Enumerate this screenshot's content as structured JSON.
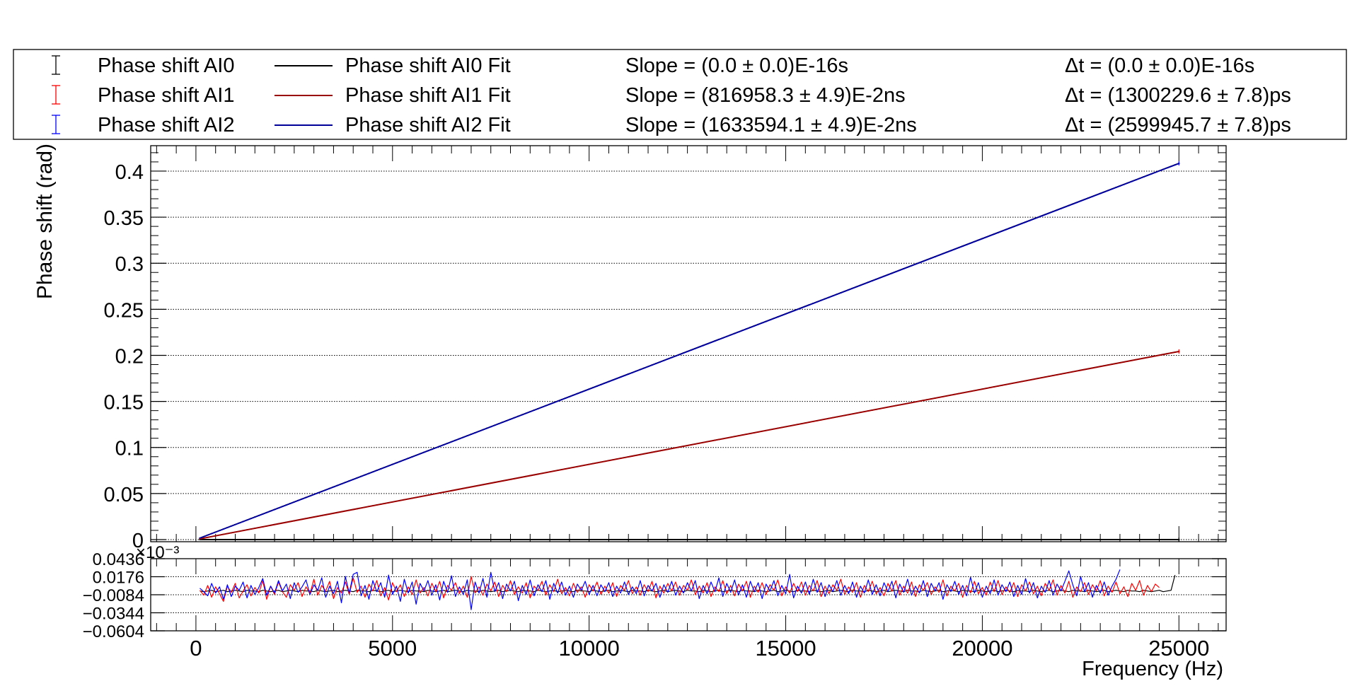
{
  "chart_data": [
    {
      "type": "scatter",
      "panel": "main",
      "xlabel": "",
      "ylabel": "Phase shift (rad)",
      "xlim": [
        -1150,
        26200
      ],
      "ylim": [
        -0.0023,
        0.4276
      ],
      "x_ticks": [
        0,
        5000,
        10000,
        15000,
        20000,
        25000
      ],
      "y_ticks": [
        0,
        0.05,
        0.1,
        0.15,
        0.2,
        0.25,
        0.3,
        0.35,
        0.4
      ],
      "y_tick_labels": [
        "0",
        "0.05",
        "0.1",
        "0.15",
        "0.2",
        "0.25",
        "0.3",
        "0.35",
        "0.4"
      ],
      "grid": true,
      "legend_position": "top",
      "series": [
        {
          "name": "Phase shift AI0",
          "color": "#000000",
          "x_range": [
            100,
            25000
          ],
          "slope_rad_per_hz": 0.0,
          "style": "points-with-error-bars"
        },
        {
          "name": "Phase shift AI1",
          "color": "#ff0000",
          "x_range": [
            100,
            25000
          ],
          "slope_rad_per_hz": 8.169583e-06,
          "style": "points-with-error-bars"
        },
        {
          "name": "Phase shift AI2",
          "color": "#0000ff",
          "x_range": [
            100,
            25000
          ],
          "slope_rad_per_hz": 1.6335941e-05,
          "style": "points-with-error-bars"
        },
        {
          "name": "Phase shift AI0 Fit",
          "color": "#000000",
          "x_range": [
            100,
            25000
          ],
          "slope_rad_per_hz": 0.0,
          "style": "line"
        },
        {
          "name": "Phase shift AI1 Fit",
          "color": "#990000",
          "x_range": [
            100,
            25000
          ],
          "slope_rad_per_hz": 8.169583e-06,
          "style": "line"
        },
        {
          "name": "Phase shift AI2 Fit",
          "color": "#000099",
          "x_range": [
            100,
            25000
          ],
          "slope_rad_per_hz": 1.6335941e-05,
          "style": "line"
        }
      ]
    },
    {
      "type": "line",
      "panel": "residuals",
      "xlabel": "Frequency (Hz)",
      "ylabel": "",
      "exponent_label": "×10⁻³",
      "xlim": [
        -1150,
        26200
      ],
      "ylim": [
        -0.0604,
        0.0436
      ],
      "y_ticks": [
        0.0436,
        0.0176,
        -0.0084,
        -0.0344,
        -0.0604
      ],
      "y_tick_labels": [
        "0.0436",
        "0.0176",
        "−0.0084",
        "−0.0344",
        "−0.0604"
      ],
      "x_ticks": [
        0,
        5000,
        10000,
        15000,
        20000,
        25000
      ],
      "x_tick_labels": [
        "0",
        "5000",
        "10000",
        "15000",
        "20000",
        "25000"
      ],
      "grid": true,
      "series": [
        {
          "name": "AI0 residual",
          "color": "#000000",
          "x_start": 100,
          "x_step": 100,
          "values": [
            -0.003,
            -0.004,
            -0.003,
            -0.002,
            -0.004,
            -0.003,
            -0.002,
            -0.004,
            -0.003,
            -0.002,
            -0.003,
            -0.004,
            -0.002,
            -0.003,
            -0.003,
            -0.004,
            -0.002,
            -0.003,
            -0.004,
            -0.003,
            -0.002,
            -0.004,
            -0.003,
            -0.002,
            -0.003,
            -0.004,
            -0.002,
            -0.003,
            -0.003,
            -0.004,
            -0.002,
            -0.003,
            -0.004,
            -0.003,
            -0.002,
            -0.004,
            -0.003,
            -0.002,
            -0.003,
            -0.004,
            -0.002,
            -0.003,
            -0.003,
            -0.004,
            -0.002,
            -0.003,
            -0.004,
            -0.003,
            -0.002,
            -0.004,
            -0.003,
            -0.002,
            -0.003,
            -0.004,
            -0.002,
            -0.003,
            -0.003,
            -0.004,
            -0.002,
            -0.003,
            -0.004,
            -0.003,
            -0.002,
            -0.004,
            -0.003,
            -0.002,
            -0.003,
            -0.004,
            -0.002,
            -0.003,
            -0.003,
            -0.004,
            -0.002,
            -0.003,
            -0.004,
            -0.003,
            -0.002,
            -0.004,
            -0.003,
            -0.002,
            -0.003,
            -0.004,
            -0.002,
            -0.003,
            -0.003,
            -0.004,
            -0.002,
            -0.003,
            -0.004,
            -0.003,
            -0.002,
            -0.004,
            -0.003,
            -0.002,
            -0.003,
            -0.004,
            -0.002,
            -0.003,
            -0.003,
            -0.004,
            -0.002,
            -0.003,
            -0.004,
            -0.003,
            -0.002,
            -0.004,
            -0.003,
            -0.002,
            -0.003,
            -0.004,
            -0.002,
            -0.003,
            -0.003,
            -0.004,
            -0.002,
            -0.003,
            -0.004,
            -0.003,
            -0.002,
            -0.004,
            -0.003,
            -0.002,
            -0.003,
            -0.004,
            -0.002,
            -0.003,
            -0.003,
            -0.004,
            -0.002,
            -0.003,
            -0.004,
            -0.003,
            -0.002,
            -0.004,
            -0.003,
            -0.002,
            -0.003,
            -0.004,
            -0.002,
            -0.003,
            -0.003,
            -0.004,
            -0.002,
            -0.003,
            -0.004,
            -0.003,
            -0.002,
            -0.004,
            -0.003,
            -0.002,
            -0.003,
            -0.004,
            -0.002,
            -0.003,
            -0.003,
            -0.004,
            -0.002,
            -0.003,
            -0.004,
            -0.003,
            -0.002,
            -0.004,
            -0.003,
            -0.002,
            -0.003,
            -0.004,
            -0.002,
            -0.003,
            -0.003,
            -0.004,
            -0.002,
            -0.003,
            -0.004,
            -0.003,
            -0.002,
            -0.004,
            -0.003,
            -0.002,
            -0.003,
            -0.004,
            -0.002,
            -0.003,
            -0.003,
            -0.004,
            -0.002,
            -0.003,
            -0.004,
            -0.003,
            -0.002,
            -0.004,
            -0.003,
            -0.002,
            -0.003,
            -0.004,
            -0.002,
            -0.003,
            -0.003,
            -0.004,
            -0.002,
            -0.003,
            -0.004,
            -0.003,
            -0.002,
            -0.004,
            -0.003,
            -0.002,
            -0.003,
            -0.004,
            -0.002,
            -0.003,
            -0.003,
            -0.004,
            -0.002,
            -0.003,
            -0.004,
            -0.003,
            -0.002,
            -0.004,
            -0.003,
            -0.002,
            -0.003,
            -0.004,
            -0.002,
            -0.003,
            -0.003,
            -0.004,
            -0.002,
            -0.003,
            -0.004,
            -0.003,
            -0.002,
            -0.004,
            -0.003,
            -0.002,
            -0.003,
            -0.004,
            -0.002,
            -0.003,
            -0.003,
            -0.004,
            -0.002,
            -0.003,
            -0.004,
            -0.003,
            -0.002,
            -0.004,
            -0.003,
            -0.002,
            0.02
          ]
        },
        {
          "name": "AI1 residual",
          "color": "#ff0000",
          "x_start": 100,
          "x_step": 100,
          "values": [
            -0.002,
            -0.009,
            0.005,
            -0.012,
            0.003,
            -0.007,
            -0.018,
            0.004,
            -0.005,
            0.008,
            -0.013,
            -0.003,
            0.006,
            -0.01,
            0.002,
            -0.006,
            0.012,
            -0.015,
            0.004,
            -0.008,
            0.01,
            -0.004,
            -0.012,
            0.006,
            -0.002,
            0.009,
            -0.011,
            0.003,
            -0.007,
            0.014,
            -0.009,
            0.005,
            -0.003,
            0.011,
            -0.014,
            0.002,
            -0.006,
            0.01,
            -0.008,
            0.016,
            -0.005,
            0.004,
            -0.012,
            0.007,
            -0.003,
            0.012,
            -0.01,
            0.002,
            -0.016,
            0.009,
            -0.004,
            0.006,
            -0.011,
            0.003,
            -0.008,
            0.013,
            -0.006,
            0.002,
            -0.01,
            0.008,
            -0.004,
            0.011,
            -0.013,
            0.005,
            -0.002,
            0.009,
            -0.007,
            0.004,
            -0.012,
            0.018,
            -0.006,
            0.003,
            -0.009,
            0.007,
            -0.003,
            0.01,
            -0.011,
            0.005,
            -0.004,
            0.012,
            -0.008,
            0.003,
            -0.006,
            0.009,
            -0.013,
            0.004,
            -0.002,
            0.011,
            -0.009,
            0.006,
            -0.004,
            0.014,
            -0.007,
            0.002,
            -0.01,
            0.008,
            -0.005,
            0.003,
            -0.012,
            0.006,
            -0.003,
            0.01,
            -0.008,
            0.004,
            -0.006,
            0.009,
            -0.011,
            0.005,
            -0.002,
            0.012,
            -0.007,
            0.003,
            -0.009,
            0.006,
            -0.004,
            0.011,
            -0.013,
            0.004,
            -0.006,
            0.008,
            -0.003,
            0.01,
            -0.009,
            0.005,
            -0.002,
            0.013,
            -0.008,
            0.004,
            -0.006,
            0.009,
            -0.011,
            0.003,
            -0.004,
            0.012,
            -0.007,
            0.005,
            -0.01,
            0.007,
            -0.003,
            0.011,
            -0.012,
            0.004,
            -0.005,
            0.009,
            -0.008,
            0.006,
            -0.002,
            0.013,
            -0.01,
            0.003,
            -0.006,
            0.008,
            -0.004,
            0.01,
            -0.009,
            0.005,
            -0.003,
            0.012,
            -0.011,
            0.004,
            -0.007,
            0.006,
            -0.002,
            0.014,
            -0.008,
            0.003,
            -0.005,
            0.009,
            -0.012,
            0.005,
            -0.004,
            0.011,
            -0.007,
            0.002,
            -0.01,
            0.008,
            -0.003,
            0.012,
            -0.009,
            0.004,
            -0.006,
            0.01,
            -0.011,
            0.006,
            -0.002,
            0.009,
            -0.008,
            0.003,
            -0.005,
            0.013,
            -0.01,
            0.004,
            -0.003,
            0.008,
            -0.012,
            0.005,
            -0.006,
            0.011,
            -0.007,
            0.002,
            -0.009,
            0.01,
            -0.004,
            0.012,
            -0.008,
            0.003,
            -0.005,
            0.009,
            -0.011,
            0.006,
            -0.003,
            0.01,
            -0.007,
            0.004,
            -0.01,
            0.008,
            -0.002,
            0.013,
            -0.009,
            0.005,
            -0.006,
            0.011,
            -0.012,
            0.003,
            -0.004,
            0.009,
            -0.008,
            0.006,
            -0.003,
            0.012,
            -0.01,
            0.004,
            -0.005,
            0.01,
            -0.007,
            0.003,
            -0.011,
            0.008,
            -0.002,
            0.012,
            -0.009,
            0.005,
            -0.004,
            0.007,
            0.002
          ]
        },
        {
          "name": "AI2 residual",
          "color": "#0000ff",
          "x_start": 100,
          "x_step": 100,
          "values": [
            0.001,
            -0.004,
            -0.01,
            0.008,
            -0.006,
            0.003,
            -0.015,
            0.006,
            -0.011,
            0.004,
            -0.002,
            0.01,
            -0.013,
            0.005,
            -0.008,
            0.002,
            0.015,
            -0.009,
            0.004,
            -0.006,
            0.012,
            -0.003,
            0.007,
            -0.014,
            0.009,
            -0.005,
            0.003,
            0.013,
            -0.008,
            0.006,
            -0.002,
            0.016,
            -0.012,
            0.004,
            -0.007,
            0.011,
            -0.02,
            0.018,
            -0.006,
            0.021,
            0.024,
            -0.01,
            0.005,
            -0.015,
            0.012,
            -0.004,
            0.009,
            -0.012,
            0.02,
            -0.008,
            0.004,
            -0.018,
            0.014,
            -0.006,
            0.01,
            -0.022,
            0.008,
            -0.003,
            0.012,
            -0.009,
            0.006,
            -0.016,
            0.011,
            -0.005,
            0.019,
            -0.011,
            0.003,
            -0.008,
            0.013,
            -0.03,
            0.01,
            -0.006,
            0.015,
            -0.012,
            0.024,
            -0.004,
            0.009,
            -0.014,
            0.007,
            -0.003,
            0.011,
            -0.017,
            0.005,
            -0.008,
            0.013,
            -0.01,
            0.006,
            -0.004,
            0.012,
            -0.015,
            0.008,
            -0.006,
            0.01,
            -0.009,
            0.004,
            -0.012,
            0.007,
            -0.002,
            0.011,
            -0.008,
            0.005,
            -0.01,
            0.006,
            -0.004,
            0.009,
            -0.011,
            0.004,
            -0.006,
            0.01,
            -0.008,
            0.003,
            -0.007,
            0.012,
            -0.01,
            0.005,
            -0.003,
            0.008,
            -0.012,
            0.006,
            -0.005,
            0.011,
            -0.009,
            0.004,
            -0.006,
            0.009,
            -0.003,
            0.012,
            -0.014,
            0.005,
            -0.007,
            0.01,
            -0.004,
            0.016,
            -0.011,
            0.008,
            -0.005,
            0.013,
            -0.009,
            0.006,
            -0.012,
            0.011,
            -0.004,
            0.009,
            -0.014,
            0.007,
            -0.003,
            0.012,
            -0.01,
            0.005,
            -0.007,
            0.021,
            -0.013,
            0.004,
            -0.006,
            0.01,
            -0.008,
            0.014,
            -0.005,
            0.009,
            -0.011,
            0.006,
            -0.004,
            0.012,
            -0.009,
            0.005,
            -0.007,
            0.01,
            -0.012,
            0.004,
            -0.006,
            0.013,
            -0.008,
            0.006,
            -0.01,
            0.009,
            -0.004,
            0.011,
            -0.013,
            0.007,
            -0.005,
            0.014,
            -0.009,
            0.004,
            -0.006,
            0.012,
            -0.011,
            0.008,
            -0.003,
            0.009,
            -0.015,
            0.006,
            -0.004,
            0.011,
            -0.008,
            0.005,
            -0.01,
            0.017,
            -0.006,
            0.009,
            -0.012,
            0.004,
            -0.007,
            0.013,
            -0.009,
            0.006,
            -0.004,
            0.01,
            -0.011,
            0.005,
            -0.008,
            0.015,
            -0.006,
            0.009,
            -0.013,
            0.004,
            -0.005,
            0.012,
            -0.009,
            0.007,
            -0.003,
            0.011,
            0.026,
            0.006,
            -0.01,
            0.018,
            -0.004,
            0.009,
            -0.012,
            0.005,
            -0.006,
            0.01,
            -0.009,
            0.004,
            0.014,
            0.028
          ]
        }
      ]
    }
  ],
  "legend": {
    "rows": [
      {
        "marker_label": "Phase shift AI0",
        "marker_color": "#000000",
        "fit_label": "Phase shift AI0 Fit",
        "fit_color": "#000000",
        "slope_text": "Slope = (0.0   ± 0.0)E-16s",
        "dt_text": "Δt = (0.0   ± 0.0)E-16s"
      },
      {
        "marker_label": "Phase shift AI1",
        "marker_color": "#ff0000",
        "fit_label": "Phase shift AI1 Fit",
        "fit_color": "#990000",
        "slope_text": "Slope = (816958.3   ± 4.9)E-2ns",
        "dt_text": "Δt = (1300229.6   ± 7.8)ps"
      },
      {
        "marker_label": "Phase shift AI2",
        "marker_color": "#0000ff",
        "fit_label": "Phase shift AI2 Fit",
        "fit_color": "#000099",
        "slope_text": "Slope = (1633594.1   ± 4.9)E-2ns",
        "dt_text": "Δt = (2599945.7   ± 7.8)ps"
      }
    ]
  }
}
